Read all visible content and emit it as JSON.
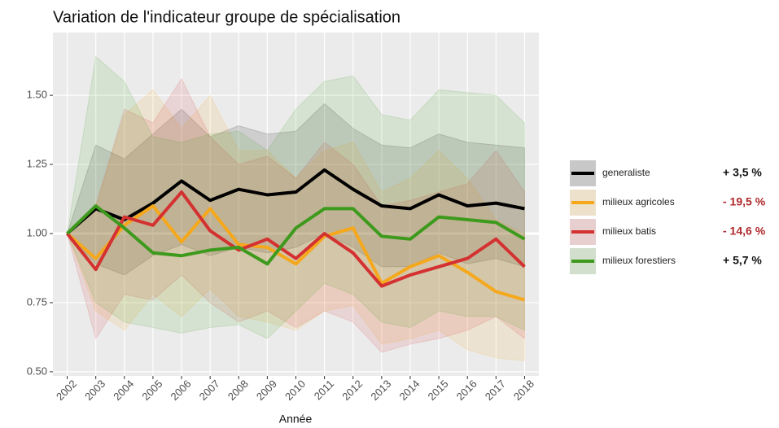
{
  "chart_data": {
    "type": "line",
    "title": "Variation de l'indicateur groupe de spécialisation",
    "x_label": "Année",
    "categories": [
      "2002",
      "2003",
      "2004",
      "2005",
      "2006",
      "2007",
      "2008",
      "2009",
      "2010",
      "2011",
      "2012",
      "2013",
      "2014",
      "2015",
      "2016",
      "2017",
      "2018"
    ],
    "ylim": [
      0.485,
      1.727
    ],
    "yticks": [
      {
        "value": 0.5,
        "label": "0.50"
      },
      {
        "value": 0.75,
        "label": "0.75"
      },
      {
        "value": 1,
        "label": "1.00"
      },
      {
        "value": 1.25,
        "label": "1.25"
      },
      {
        "value": 1.5,
        "label": "1.50"
      }
    ],
    "reference_line": 1,
    "grid": true,
    "legend": "right",
    "series": [
      {
        "name": "generaliste",
        "color": "#000000",
        "change_label": "+ 3,5 %",
        "change_color": "#111111",
        "values": [
          1.0,
          1.09,
          1.05,
          1.11,
          1.19,
          1.12,
          1.16,
          1.14,
          1.15,
          1.23,
          1.16,
          1.1,
          1.09,
          1.14,
          1.1,
          1.11,
          1.09
        ],
        "upper": [
          1.0,
          1.32,
          1.27,
          1.36,
          1.45,
          1.35,
          1.39,
          1.36,
          1.37,
          1.47,
          1.38,
          1.32,
          1.31,
          1.36,
          1.33,
          1.32,
          1.31
        ],
        "lower": [
          1.0,
          0.89,
          0.85,
          0.92,
          0.96,
          0.92,
          0.95,
          0.93,
          0.95,
          1.0,
          0.95,
          0.88,
          0.88,
          0.93,
          0.89,
          0.91,
          0.88
        ]
      },
      {
        "name": "milieux agricoles",
        "color": "#f5a81c",
        "change_label": "- 19,5 %",
        "change_color": "#b0282c",
        "values": [
          1.0,
          0.91,
          1.03,
          1.1,
          0.97,
          1.09,
          0.96,
          0.95,
          0.89,
          0.99,
          1.02,
          0.82,
          0.88,
          0.92,
          0.86,
          0.79,
          0.76
        ],
        "upper": [
          1.0,
          1.1,
          1.43,
          1.52,
          1.38,
          1.5,
          1.3,
          1.3,
          1.2,
          1.3,
          1.33,
          1.15,
          1.2,
          1.3,
          1.2,
          1.05,
          1.0
        ],
        "lower": [
          1.0,
          0.72,
          0.65,
          0.78,
          0.7,
          0.8,
          0.7,
          0.68,
          0.65,
          0.72,
          0.74,
          0.6,
          0.62,
          0.65,
          0.58,
          0.55,
          0.54
        ]
      },
      {
        "name": "milieux batis",
        "color": "#d43131",
        "change_label": "- 14,6 %",
        "change_color": "#b0282c",
        "values": [
          1.0,
          0.87,
          1.06,
          1.03,
          1.15,
          1.01,
          0.94,
          0.98,
          0.91,
          1.0,
          0.93,
          0.81,
          0.85,
          0.88,
          0.91,
          0.98,
          0.88
        ],
        "upper": [
          1.0,
          1.1,
          1.45,
          1.4,
          1.56,
          1.35,
          1.25,
          1.28,
          1.2,
          1.33,
          1.25,
          1.1,
          1.12,
          1.15,
          1.18,
          1.3,
          1.15
        ],
        "lower": [
          1.0,
          0.62,
          0.78,
          0.76,
          0.85,
          0.75,
          0.68,
          0.72,
          0.66,
          0.72,
          0.68,
          0.57,
          0.6,
          0.62,
          0.65,
          0.7,
          0.62
        ]
      },
      {
        "name": "milieux forestiers",
        "color": "#3d9a1c",
        "change_label": "+ 5,7 %",
        "change_color": "#111111",
        "values": [
          1.0,
          1.1,
          1.02,
          0.93,
          0.92,
          0.94,
          0.95,
          0.89,
          1.02,
          1.09,
          1.09,
          0.99,
          0.98,
          1.06,
          1.05,
          1.04,
          0.98
        ],
        "upper": [
          1.0,
          1.64,
          1.55,
          1.35,
          1.33,
          1.36,
          1.37,
          1.3,
          1.45,
          1.55,
          1.57,
          1.43,
          1.41,
          1.52,
          1.51,
          1.5,
          1.4
        ],
        "lower": [
          1.0,
          0.75,
          0.68,
          0.66,
          0.64,
          0.66,
          0.67,
          0.62,
          0.72,
          0.82,
          0.78,
          0.68,
          0.66,
          0.72,
          0.7,
          0.7,
          0.65
        ]
      }
    ]
  }
}
